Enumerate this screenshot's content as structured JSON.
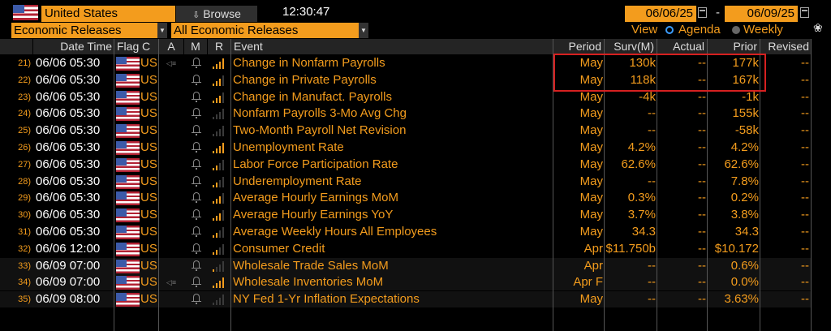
{
  "toolbar": {
    "country": "United States",
    "browse_label": "Browse",
    "clock": "12:30:47",
    "date_from": "06/06/25",
    "date_to": "06/09/25",
    "date_sep": "-"
  },
  "filters": {
    "release_type": "Economic Releases",
    "release_filter": "All Economic Releases",
    "view_label": "View",
    "views": [
      "Agenda",
      "Weekly"
    ],
    "selected_view": "Agenda"
  },
  "columns": {
    "datetime": "Date Time",
    "flag": "Flag",
    "country": "C",
    "a": "A",
    "m": "M",
    "r": "R",
    "event": "Event",
    "period": "Period",
    "survey": "Surv(M)",
    "actual": "Actual",
    "prior": "Prior",
    "revised": "Revised"
  },
  "rows": [
    {
      "num": "21)",
      "dt": "06/06 05:30",
      "c": "US",
      "event": "Change in Nonfarm Payrolls",
      "period": "May",
      "surv": "130k",
      "actual": "--",
      "prior": "177k",
      "revised": "--",
      "speaker": true,
      "rel": 4
    },
    {
      "num": "22)",
      "dt": "06/06 05:30",
      "c": "US",
      "event": "Change in Private Payrolls",
      "period": "May",
      "surv": "118k",
      "actual": "--",
      "prior": "167k",
      "revised": "--",
      "speaker": false,
      "rel": 3
    },
    {
      "num": "23)",
      "dt": "06/06 05:30",
      "c": "US",
      "event": "Change in Manufact. Payrolls",
      "period": "May",
      "surv": "-4k",
      "actual": "--",
      "prior": "-1k",
      "revised": "--",
      "speaker": false,
      "rel": 3
    },
    {
      "num": "24)",
      "dt": "06/06 05:30",
      "c": "US",
      "event": "Nonfarm Payrolls 3-Mo Avg Chg",
      "period": "May",
      "surv": "--",
      "actual": "--",
      "prior": "155k",
      "revised": "--",
      "speaker": false,
      "rel": 0
    },
    {
      "num": "25)",
      "dt": "06/06 05:30",
      "c": "US",
      "event": "Two-Month Payroll Net Revision",
      "period": "May",
      "surv": "--",
      "actual": "--",
      "prior": "-58k",
      "revised": "--",
      "speaker": false,
      "rel": 0
    },
    {
      "num": "26)",
      "dt": "06/06 05:30",
      "c": "US",
      "event": "Unemployment Rate",
      "period": "May",
      "surv": "4.2%",
      "actual": "--",
      "prior": "4.2%",
      "revised": "--",
      "speaker": false,
      "rel": 4
    },
    {
      "num": "27)",
      "dt": "06/06 05:30",
      "c": "US",
      "event": "Labor Force Participation Rate",
      "period": "May",
      "surv": "62.6%",
      "actual": "--",
      "prior": "62.6%",
      "revised": "--",
      "speaker": false,
      "rel": 2
    },
    {
      "num": "28)",
      "dt": "06/06 05:30",
      "c": "US",
      "event": "Underemployment Rate",
      "period": "May",
      "surv": "--",
      "actual": "--",
      "prior": "7.8%",
      "revised": "--",
      "speaker": false,
      "rel": 2
    },
    {
      "num": "29)",
      "dt": "06/06 05:30",
      "c": "US",
      "event": "Average Hourly Earnings MoM",
      "period": "May",
      "surv": "0.3%",
      "actual": "--",
      "prior": "0.2%",
      "revised": "--",
      "speaker": false,
      "rel": 3
    },
    {
      "num": "30)",
      "dt": "06/06 05:30",
      "c": "US",
      "event": "Average Hourly Earnings YoY",
      "period": "May",
      "surv": "3.7%",
      "actual": "--",
      "prior": "3.8%",
      "revised": "--",
      "speaker": false,
      "rel": 3
    },
    {
      "num": "31)",
      "dt": "06/06 05:30",
      "c": "US",
      "event": "Average Weekly Hours All Employees",
      "period": "May",
      "surv": "34.3",
      "actual": "--",
      "prior": "34.3",
      "revised": "--",
      "speaker": false,
      "rel": 2
    },
    {
      "num": "32)",
      "dt": "06/06 12:00",
      "c": "US",
      "event": "Consumer Credit",
      "period": "Apr",
      "surv": "$11.750b",
      "actual": "--",
      "prior": "$10.172",
      "revised": "--",
      "speaker": false,
      "rel": 2
    },
    {
      "num": "33)",
      "dt": "06/09 07:00",
      "c": "US",
      "event": "Wholesale Trade Sales MoM",
      "period": "Apr",
      "surv": "--",
      "actual": "--",
      "prior": "0.6%",
      "revised": "--",
      "speaker": false,
      "rel": 1,
      "shaded": true
    },
    {
      "num": "34)",
      "dt": "06/09 07:00",
      "c": "US",
      "event": "Wholesale Inventories MoM",
      "period": "Apr F",
      "surv": "--",
      "actual": "--",
      "prior": "0.0%",
      "revised": "--",
      "speaker": true,
      "rel": 4,
      "shaded": true
    },
    {
      "num": "35)",
      "dt": "06/09 08:00",
      "c": "US",
      "event": "NY Fed 1-Yr Inflation Expectations",
      "period": "May",
      "surv": "--",
      "actual": "--",
      "prior": "3.63%",
      "revised": "--",
      "speaker": false,
      "rel": 0,
      "shaded": true
    }
  ],
  "colors": {
    "accent": "#f39c1d",
    "highlight": "#d62020",
    "background": "#000000"
  }
}
